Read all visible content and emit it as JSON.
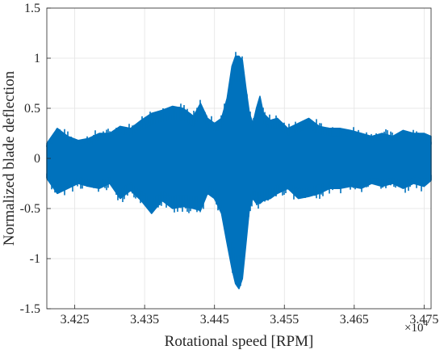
{
  "chart_data": {
    "type": "scatter",
    "title": "",
    "xlabel": "Rotational speed [RPM]",
    "ylabel": "Normalized blade deflection",
    "x_exponent_label": "×10",
    "x_exponent_power": "4",
    "xlim": [
      34210,
      34760
    ],
    "ylim": [
      -1.5,
      1.5
    ],
    "x_ticks": [
      34250,
      34350,
      34450,
      34550,
      34650,
      34750
    ],
    "x_tick_labels": [
      "3.425",
      "3.435",
      "3.445",
      "3.455",
      "3.465",
      "3.475"
    ],
    "y_ticks": [
      -1.5,
      -1,
      -0.5,
      0,
      0.5,
      1,
      1.5
    ],
    "y_tick_labels": [
      "-1.5",
      "-1",
      "-0.5",
      "0",
      "0.5",
      "1",
      "1.5"
    ],
    "grid": true,
    "marker": "x",
    "color": "#0072BD",
    "x": [
      34210,
      34225,
      34240,
      34255,
      34270,
      34285,
      34300,
      34315,
      34330,
      34345,
      34360,
      34375,
      34390,
      34405,
      34420,
      34430,
      34440,
      34450,
      34460,
      34468,
      34475,
      34480,
      34485,
      34490,
      34495,
      34500,
      34505,
      34510,
      34515,
      34520,
      34530,
      34540,
      34555,
      34570,
      34585,
      34600,
      34615,
      34630,
      34645,
      34660,
      34675,
      34690,
      34705,
      34720,
      34735,
      34750,
      34760
    ],
    "y_upper": [
      0.15,
      0.3,
      0.22,
      0.18,
      0.2,
      0.25,
      0.25,
      0.32,
      0.3,
      0.38,
      0.45,
      0.48,
      0.52,
      0.5,
      0.42,
      0.55,
      0.4,
      0.35,
      0.4,
      0.6,
      0.92,
      1.02,
      1.02,
      0.98,
      0.7,
      0.45,
      0.35,
      0.5,
      0.62,
      0.45,
      0.38,
      0.4,
      0.3,
      0.35,
      0.4,
      0.32,
      0.3,
      0.3,
      0.28,
      0.25,
      0.22,
      0.25,
      0.22,
      0.28,
      0.25,
      0.25,
      0.22
    ],
    "y_lower": [
      -0.2,
      -0.35,
      -0.3,
      -0.25,
      -0.28,
      -0.3,
      -0.25,
      -0.4,
      -0.32,
      -0.42,
      -0.55,
      -0.42,
      -0.5,
      -0.48,
      -0.5,
      -0.52,
      -0.35,
      -0.4,
      -0.55,
      -0.85,
      -1.1,
      -1.25,
      -1.3,
      -1.2,
      -0.85,
      -0.5,
      -0.4,
      -0.45,
      -0.45,
      -0.42,
      -0.4,
      -0.35,
      -0.3,
      -0.4,
      -0.38,
      -0.35,
      -0.3,
      -0.3,
      -0.28,
      -0.3,
      -0.25,
      -0.28,
      -0.25,
      -0.3,
      -0.25,
      -0.28,
      -0.22
    ]
  }
}
